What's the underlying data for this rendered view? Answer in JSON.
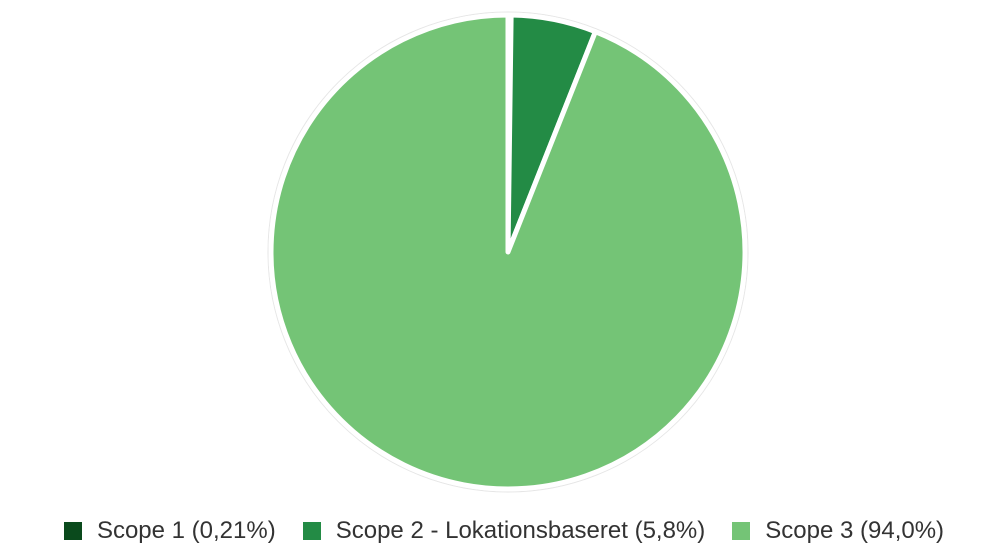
{
  "chart_data": {
    "type": "pie",
    "title": "",
    "series": [
      {
        "name": "Scope 1",
        "legend_label": "Scope 1 (0,21%)",
        "value": 0.21,
        "color": "#0a4a1c"
      },
      {
        "name": "Scope 2 - Lokationsbaseret",
        "legend_label": "Scope 2 - Lokationsbaseret (5,8%)",
        "value": 5.8,
        "color": "#238b45"
      },
      {
        "name": "Scope 3",
        "legend_label": "Scope 3 (94,0%)",
        "value": 94.0,
        "color": "#74c476"
      }
    ],
    "start_angle": "top",
    "direction": "clockwise",
    "legend_position": "bottom",
    "slice_border_color": "#ffffff"
  }
}
